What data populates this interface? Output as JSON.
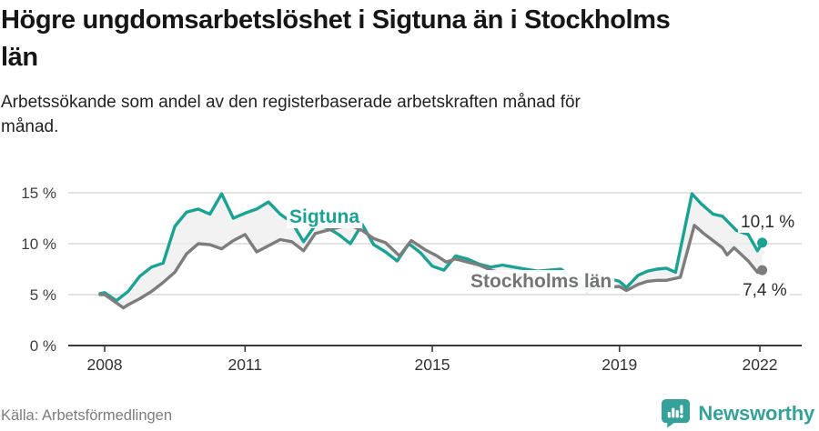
{
  "header": {
    "title": "Högre ungdomsarbetslöshet i Sigtuna än i Stockholms län",
    "subtitle": "Arbetssökande som andel av den registerbaserade arbetskraften månad för månad."
  },
  "footer": {
    "source": "Källa: Arbetsförmedlingen",
    "brand": "Newsworthy"
  },
  "colors": {
    "sigtuna_teal": "#1aa394",
    "stockholm_gray": "#7d7d7d",
    "brand_teal": "#35a19b",
    "area_fill": "#eeeeee",
    "gridline": "#dadada",
    "axis": "#3b3b3b",
    "tick_text": "#3f3f3f",
    "value_label_text": "#2d2d2d"
  },
  "chart_data": {
    "type": "line",
    "title": "Högre ungdomsarbetslöshet i Sigtuna än i Stockholms län",
    "subtitle": "Arbetssökande som andel av den registerbaserade arbetskraften månad för månad.",
    "unit": "%",
    "source": "Källa: Arbetsförmedlingen",
    "gridlines": "horizontal",
    "legend_position": "inline-labels",
    "x_axis": {
      "range": [
        2007.2,
        2022.9
      ],
      "ticks": [
        {
          "value": 2008,
          "label": "2008"
        },
        {
          "value": 2011,
          "label": "2011"
        },
        {
          "value": 2015,
          "label": "2015"
        },
        {
          "value": 2019,
          "label": "2019"
        },
        {
          "value": 2022,
          "label": "2022"
        }
      ]
    },
    "y_axis": {
      "range": [
        0,
        15
      ],
      "ticks": [
        {
          "value": 0,
          "label": "0 %"
        },
        {
          "value": 5,
          "label": "5 %"
        },
        {
          "value": 10,
          "label": "10 %"
        },
        {
          "value": 15,
          "label": "15 %"
        }
      ]
    },
    "series": [
      {
        "id": "sigtuna",
        "name": "Sigtuna",
        "color": "#1aa394",
        "end_label": "10,1 %",
        "end_value": 10.1,
        "points": [
          [
            2007.9,
            5.1
          ],
          [
            2008.0,
            5.2
          ],
          [
            2008.25,
            4.4
          ],
          [
            2008.5,
            5.3
          ],
          [
            2008.75,
            6.8
          ],
          [
            2009.0,
            7.7
          ],
          [
            2009.25,
            8.1
          ],
          [
            2009.5,
            11.7
          ],
          [
            2009.75,
            13.1
          ],
          [
            2010.0,
            13.4
          ],
          [
            2010.25,
            12.9
          ],
          [
            2010.5,
            14.9
          ],
          [
            2010.75,
            12.5
          ],
          [
            2011.0,
            13.0
          ],
          [
            2011.25,
            13.4
          ],
          [
            2011.5,
            14.1
          ],
          [
            2011.75,
            12.9
          ],
          [
            2012.0,
            12.1
          ],
          [
            2012.25,
            10.2
          ],
          [
            2012.5,
            11.8
          ],
          [
            2012.75,
            11.6
          ],
          [
            2013.0,
            10.9
          ],
          [
            2013.25,
            10.0
          ],
          [
            2013.5,
            11.9
          ],
          [
            2013.75,
            9.9
          ],
          [
            2014.0,
            9.2
          ],
          [
            2014.25,
            8.3
          ],
          [
            2014.5,
            10.0
          ],
          [
            2014.75,
            9.1
          ],
          [
            2015.0,
            7.8
          ],
          [
            2015.25,
            7.4
          ],
          [
            2015.5,
            8.8
          ],
          [
            2015.75,
            8.5
          ],
          [
            2016.0,
            8.0
          ],
          [
            2016.25,
            7.7
          ],
          [
            2016.5,
            7.9
          ],
          [
            2016.75,
            7.7
          ],
          [
            2017.0,
            7.5
          ],
          [
            2017.25,
            7.3
          ],
          [
            2017.5,
            7.4
          ],
          [
            2017.75,
            7.5
          ],
          [
            2018.0,
            6.6
          ],
          [
            2018.3,
            5.3
          ],
          [
            2018.5,
            6.2
          ],
          [
            2018.75,
            6.6
          ],
          [
            2019.0,
            6.3
          ],
          [
            2019.15,
            5.7
          ],
          [
            2019.4,
            6.9
          ],
          [
            2019.6,
            7.3
          ],
          [
            2019.8,
            7.5
          ],
          [
            2020.0,
            7.6
          ],
          [
            2020.2,
            7.2
          ],
          [
            2020.55,
            14.9
          ],
          [
            2020.75,
            13.9
          ],
          [
            2021.0,
            12.9
          ],
          [
            2021.2,
            12.7
          ],
          [
            2021.5,
            11.3
          ],
          [
            2021.75,
            10.9
          ],
          [
            2021.95,
            9.3
          ],
          [
            2022.05,
            10.1
          ]
        ]
      },
      {
        "id": "stockholms-lan",
        "name": "Stockholms län",
        "color": "#7d7d7d",
        "end_label": "7,4 %",
        "end_value": 7.4,
        "points": [
          [
            2007.9,
            5.0
          ],
          [
            2008.0,
            5.0
          ],
          [
            2008.25,
            4.2
          ],
          [
            2008.4,
            3.7
          ],
          [
            2008.5,
            4.0
          ],
          [
            2008.75,
            4.6
          ],
          [
            2009.0,
            5.3
          ],
          [
            2009.25,
            6.2
          ],
          [
            2009.5,
            7.2
          ],
          [
            2009.75,
            9.0
          ],
          [
            2010.0,
            10.0
          ],
          [
            2010.25,
            9.9
          ],
          [
            2010.5,
            9.5
          ],
          [
            2010.75,
            10.3
          ],
          [
            2011.0,
            10.9
          ],
          [
            2011.25,
            9.2
          ],
          [
            2011.5,
            9.8
          ],
          [
            2011.75,
            10.4
          ],
          [
            2012.0,
            10.2
          ],
          [
            2012.25,
            9.3
          ],
          [
            2012.5,
            11.0
          ],
          [
            2012.75,
            11.3
          ],
          [
            2013.0,
            11.6
          ],
          [
            2013.25,
            11.8
          ],
          [
            2013.5,
            11.3
          ],
          [
            2013.75,
            10.5
          ],
          [
            2014.0,
            10.1
          ],
          [
            2014.3,
            8.8
          ],
          [
            2014.55,
            10.3
          ],
          [
            2014.85,
            9.4
          ],
          [
            2015.1,
            8.8
          ],
          [
            2015.3,
            8.2
          ],
          [
            2015.5,
            8.5
          ],
          [
            2015.75,
            8.2
          ],
          [
            2016.0,
            7.9
          ],
          [
            2016.25,
            7.4
          ],
          [
            2016.5,
            7.1
          ],
          [
            2016.75,
            6.9
          ],
          [
            2017.0,
            6.8
          ],
          [
            2017.25,
            6.7
          ],
          [
            2017.5,
            6.5
          ],
          [
            2017.75,
            6.2
          ],
          [
            2018.0,
            5.9
          ],
          [
            2018.25,
            5.7
          ],
          [
            2018.5,
            5.6
          ],
          [
            2018.75,
            5.7
          ],
          [
            2019.0,
            5.8
          ],
          [
            2019.15,
            5.4
          ],
          [
            2019.4,
            6.0
          ],
          [
            2019.6,
            6.3
          ],
          [
            2019.8,
            6.4
          ],
          [
            2020.0,
            6.4
          ],
          [
            2020.3,
            6.7
          ],
          [
            2020.6,
            11.8
          ],
          [
            2020.8,
            11.0
          ],
          [
            2021.0,
            10.3
          ],
          [
            2021.2,
            9.6
          ],
          [
            2021.3,
            8.9
          ],
          [
            2021.45,
            9.6
          ],
          [
            2021.75,
            8.3
          ],
          [
            2021.95,
            7.2
          ],
          [
            2022.05,
            7.4
          ]
        ]
      }
    ]
  }
}
